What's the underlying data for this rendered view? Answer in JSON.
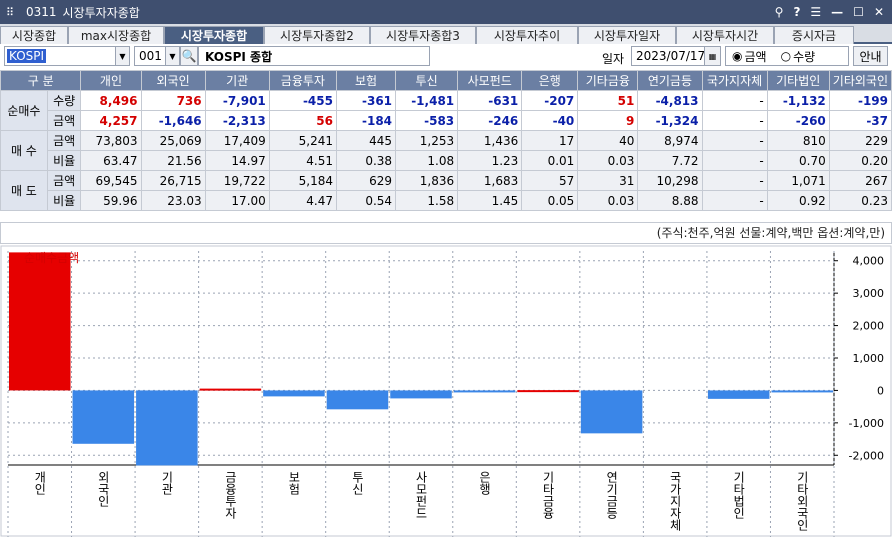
{
  "window": {
    "code": "0311",
    "title": "시장투자자종합"
  },
  "tabs": [
    {
      "label": "시장종합",
      "w": 68
    },
    {
      "label": "max시장종합",
      "w": 96
    },
    {
      "label": "시장투자종합",
      "w": 100,
      "active": true
    },
    {
      "label": "시장투자종합2",
      "w": 106
    },
    {
      "label": "시장투자종합3",
      "w": 106
    },
    {
      "label": "시장투자추이",
      "w": 102
    },
    {
      "label": "시장투자일자",
      "w": 98
    },
    {
      "label": "시장투자시간",
      "w": 98
    },
    {
      "label": "증시자금",
      "w": 80
    }
  ],
  "toolbar": {
    "market_value": "KOSPI",
    "code_value": "001",
    "index_name": "KOSPI 종합",
    "date_label": "일자",
    "date_value": "2023/07/17",
    "radio_amount": "금액",
    "radio_qty": "수량",
    "guide_button": "안내"
  },
  "table": {
    "header_group": "구 분",
    "columns": [
      "개인",
      "외국인",
      "기관",
      "금융투자",
      "보험",
      "투신",
      "사모펀드",
      "은행",
      "기타금융",
      "연기금등",
      "국가지자체",
      "기타법인",
      "기타외국인"
    ],
    "groups": [
      {
        "name": "순매수",
        "rows": [
          {
            "label": "수량",
            "values": [
              "8,496",
              "736",
              "-7,901",
              "-455",
              "-361",
              "-1,481",
              "-631",
              "-207",
              "51",
              "-4,813",
              "-",
              "-1,132",
              "-199"
            ],
            "colored": true
          },
          {
            "label": "금액",
            "values": [
              "4,257",
              "-1,646",
              "-2,313",
              "56",
              "-184",
              "-583",
              "-246",
              "-40",
              "9",
              "-1,324",
              "-",
              "-260",
              "-37"
            ],
            "colored": true
          }
        ]
      },
      {
        "name": "매 수",
        "rows": [
          {
            "label": "금액",
            "values": [
              "73,803",
              "25,069",
              "17,409",
              "5,241",
              "445",
              "1,253",
              "1,436",
              "17",
              "40",
              "8,974",
              "-",
              "810",
              "229"
            ]
          },
          {
            "label": "비율",
            "values": [
              "63.47",
              "21.56",
              "14.97",
              "4.51",
              "0.38",
              "1.08",
              "1.23",
              "0.01",
              "0.03",
              "7.72",
              "-",
              "0.70",
              "0.20"
            ]
          }
        ]
      },
      {
        "name": "매 도",
        "rows": [
          {
            "label": "금액",
            "values": [
              "69,545",
              "26,715",
              "19,722",
              "5,184",
              "629",
              "1,836",
              "1,683",
              "57",
              "31",
              "10,298",
              "-",
              "1,071",
              "267"
            ]
          },
          {
            "label": "비율",
            "values": [
              "59.96",
              "23.03",
              "17.00",
              "4.47",
              "0.54",
              "1.58",
              "1.45",
              "0.05",
              "0.03",
              "8.88",
              "-",
              "0.92",
              "0.23"
            ]
          }
        ]
      }
    ]
  },
  "unit_note": "(주식:천주,억원 선물:계약,백만 옵션:계약,만)",
  "chart_data": {
    "type": "bar",
    "series": [
      {
        "name": "순매수금액",
        "values": [
          4257,
          -1646,
          -2313,
          56,
          -184,
          -583,
          -246,
          -40,
          9,
          -1324,
          0,
          -260,
          -37
        ]
      }
    ],
    "categories": [
      "개인",
      "외국인",
      "기관",
      "금융투자",
      "보험",
      "투신",
      "사모펀드",
      "은행",
      "기타금융",
      "연기금등",
      "국가지자체",
      "기타법인",
      "기타외국인"
    ],
    "yticks": [
      "4,000",
      "3,000",
      "2,000",
      "1,000",
      "0",
      "-1,000",
      "-2,000"
    ],
    "ylim": [
      -2300,
      4300
    ],
    "colors": {
      "positive": "#e60000",
      "negative": "#3a86e8",
      "grid": "#9aa3b3"
    }
  }
}
